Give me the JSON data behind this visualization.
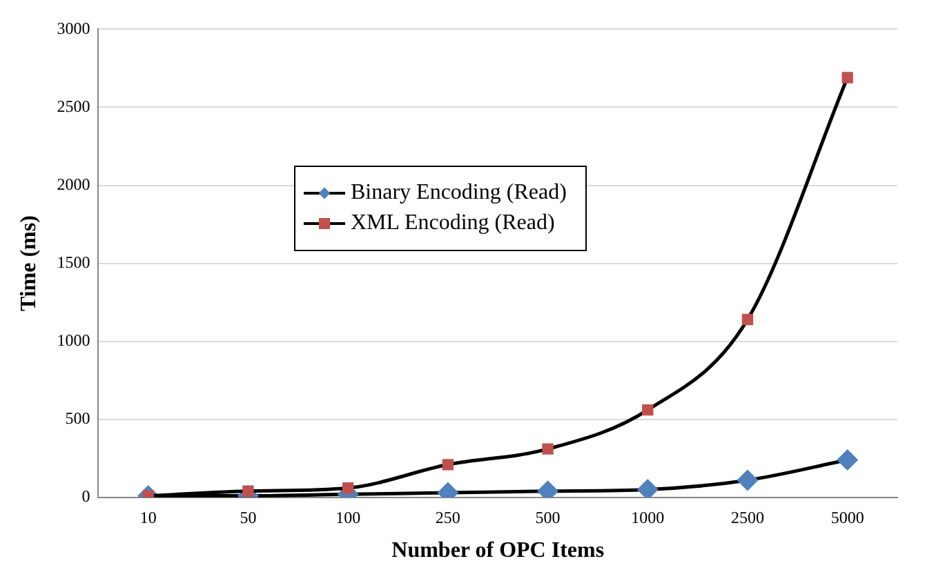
{
  "chart_data": {
    "type": "line",
    "xlabel": "Number of OPC Items",
    "ylabel": "Time (ms)",
    "categories": [
      "10",
      "50",
      "100",
      "250",
      "500",
      "1000",
      "2500",
      "5000"
    ],
    "series": [
      {
        "name": "Binary Encoding (Read)",
        "color": "#4f81bd",
        "marker": "diamond",
        "values": [
          10,
          10,
          20,
          30,
          40,
          50,
          110,
          240
        ]
      },
      {
        "name": "XML Encoding (Read)",
        "color": "#c0504d",
        "marker": "square",
        "values": [
          10,
          40,
          60,
          210,
          310,
          560,
          1140,
          2690
        ]
      }
    ],
    "ylim": [
      0,
      3000
    ],
    "yticks": [
      0,
      500,
      1000,
      1500,
      2000,
      2500,
      3000
    ],
    "grid": "y",
    "legend": "top left",
    "line_style": "solid"
  }
}
